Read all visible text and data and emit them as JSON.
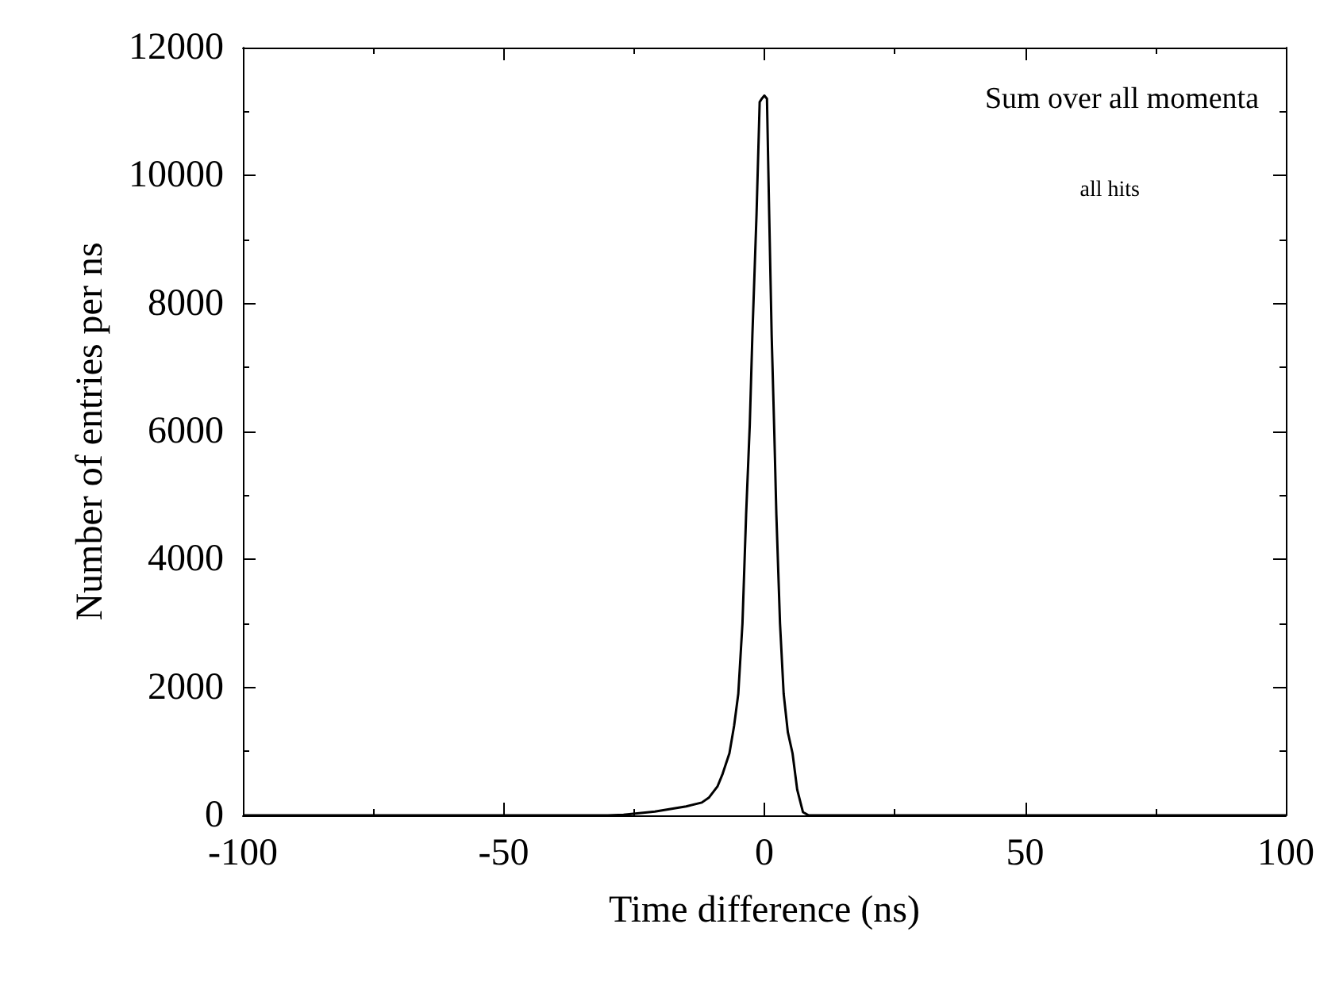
{
  "chart_data": {
    "type": "line",
    "xlabel": "Time difference (ns)",
    "ylabel": "Number of entries per ns",
    "annotations": [
      "Sum over all momenta",
      "all hits"
    ],
    "x": [
      -100,
      -40,
      -30,
      -27,
      -21,
      -15,
      -12,
      -10.6,
      -9,
      -8,
      -6.7,
      -5.8,
      -5,
      -4.2,
      -3.5,
      -2.8,
      -2.3,
      -1.5,
      -0.9,
      -0.5,
      0,
      0.5,
      0.9,
      1.4,
      1.9,
      2.3,
      3,
      3.7,
      4.5,
      5.4,
      6.3,
      7.4,
      8.5,
      10,
      20,
      40,
      100
    ],
    "series": [
      {
        "color": "#000000",
        "values": [
          0,
          0,
          0,
          10,
          60,
          140,
          200,
          280,
          450,
          650,
          970,
          1400,
          1900,
          3000,
          4700,
          6100,
          7500,
          9400,
          11150,
          11200,
          11250,
          11200,
          9500,
          7500,
          6000,
          4700,
          3000,
          1900,
          1300,
          970,
          400,
          50,
          0,
          0,
          0,
          0,
          0
        ]
      }
    ],
    "xlim": [
      -100,
      100
    ],
    "ylim": [
      0,
      12000
    ],
    "xticks": [
      -100,
      -50,
      0,
      50,
      100
    ],
    "yticks": [
      0,
      2000,
      4000,
      6000,
      8000,
      10000,
      12000
    ],
    "grid": false,
    "marker": "none",
    "line_style": "solid"
  }
}
